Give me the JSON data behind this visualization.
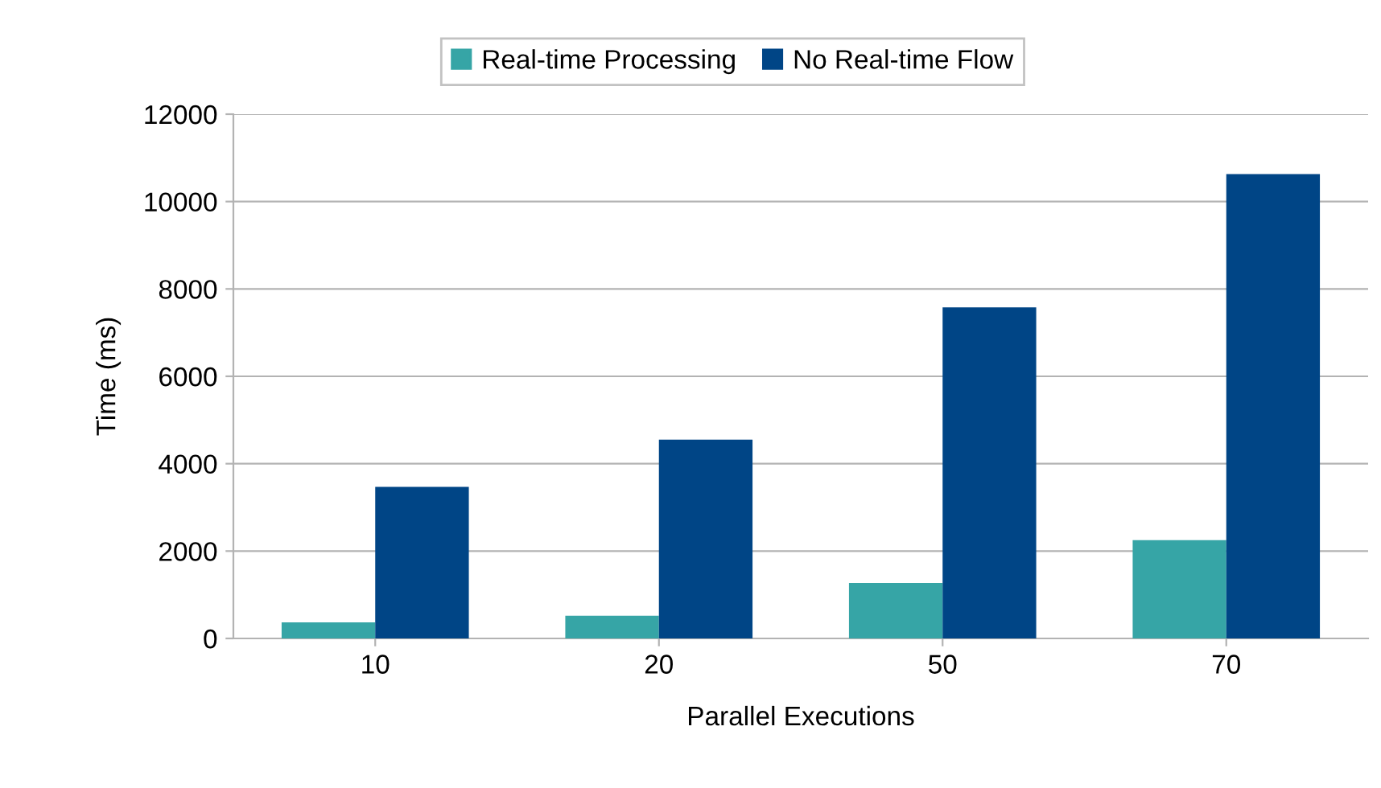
{
  "chart_data": {
    "type": "bar",
    "xlabel": "Parallel Executions",
    "ylabel": "Time (ms)",
    "categories": [
      "10",
      "20",
      "50",
      "70"
    ],
    "series": [
      {
        "name": "Real-time Processing",
        "color": "#36a5a6",
        "values": [
          370,
          520,
          1270,
          2250
        ]
      },
      {
        "name": "No Real-time Flow",
        "color": "#004586",
        "values": [
          3470,
          4550,
          7580,
          10630
        ]
      }
    ],
    "ylim": [
      0,
      12000
    ],
    "yticks": [
      0,
      2000,
      4000,
      6000,
      8000,
      10000,
      12000
    ],
    "grid": "y",
    "legend": "top"
  }
}
